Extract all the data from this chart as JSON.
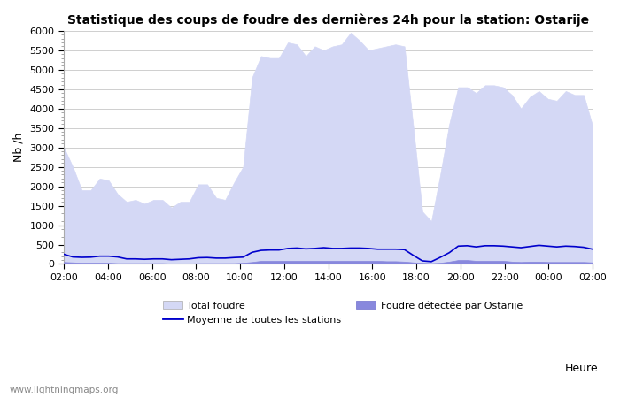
{
  "title": "Statistique des coups de foudre des dernières 24h pour la station: Ostarije",
  "xlabel": "Heure",
  "ylabel": "Nb /h",
  "watermark": "www.lightningmaps.org",
  "x_labels": [
    "02:00",
    "04:00",
    "06:00",
    "08:00",
    "10:00",
    "12:00",
    "14:00",
    "16:00",
    "18:00",
    "20:00",
    "22:00",
    "00:00",
    "02:00"
  ],
  "x_ticks": [
    0,
    4,
    8,
    12,
    16,
    20,
    24,
    28,
    32,
    36,
    40,
    44,
    48
  ],
  "ylim": [
    0,
    6000
  ],
  "yticks": [
    0,
    500,
    1000,
    1500,
    2000,
    2500,
    3000,
    3500,
    4000,
    4500,
    5000,
    5500,
    6000
  ],
  "bg_color": "#ffffff",
  "plot_bg_color": "#ffffff",
  "grid_color": "#c8c8c8",
  "total_foudre_color": "#d4d8f5",
  "total_foudre_edge": "#c0c8ec",
  "foudre_ostarije_color": "#8888dd",
  "foudre_ostarije_edge": "#7070cc",
  "moyenne_color": "#0000cc",
  "legend_total": "Total foudre",
  "legend_moyenne": "Moyenne de toutes les stations",
  "legend_ostarije": "Foudre détectée par Ostarije",
  "total_foudre": [
    3000,
    2500,
    1900,
    1900,
    2200,
    2150,
    1800,
    1600,
    1650,
    1550,
    1650,
    1650,
    1450,
    1600,
    1600,
    2050,
    2050,
    1700,
    1650,
    2100,
    2500,
    4800,
    5350,
    5300,
    5300,
    5700,
    5650,
    5350,
    5600,
    5500,
    5600,
    5650,
    5950,
    5750,
    5500,
    5550,
    5600,
    5650,
    5600,
    3500,
    1350,
    1100,
    2300,
    3600,
    4550,
    4550,
    4400,
    4600,
    4600,
    4550,
    4350,
    4000,
    4300,
    4450,
    4250,
    4200,
    4450,
    4350,
    4350,
    3550
  ],
  "foudre_ostarije": [
    50,
    40,
    30,
    30,
    30,
    30,
    20,
    20,
    20,
    20,
    20,
    20,
    10,
    10,
    10,
    20,
    20,
    20,
    20,
    20,
    30,
    50,
    80,
    80,
    80,
    80,
    80,
    80,
    80,
    80,
    80,
    80,
    80,
    80,
    80,
    80,
    70,
    70,
    60,
    40,
    30,
    20,
    30,
    60,
    100,
    100,
    80,
    80,
    80,
    80,
    60,
    50,
    60,
    60,
    50,
    50,
    50,
    50,
    50,
    40
  ],
  "moyenne": [
    250,
    180,
    170,
    175,
    200,
    200,
    180,
    130,
    130,
    120,
    130,
    130,
    110,
    120,
    130,
    160,
    165,
    150,
    150,
    165,
    175,
    300,
    350,
    360,
    360,
    400,
    410,
    390,
    400,
    420,
    400,
    400,
    410,
    410,
    400,
    380,
    380,
    380,
    370,
    220,
    80,
    60,
    170,
    290,
    460,
    470,
    440,
    470,
    470,
    460,
    440,
    420,
    450,
    480,
    460,
    440,
    460,
    450,
    430,
    380
  ]
}
